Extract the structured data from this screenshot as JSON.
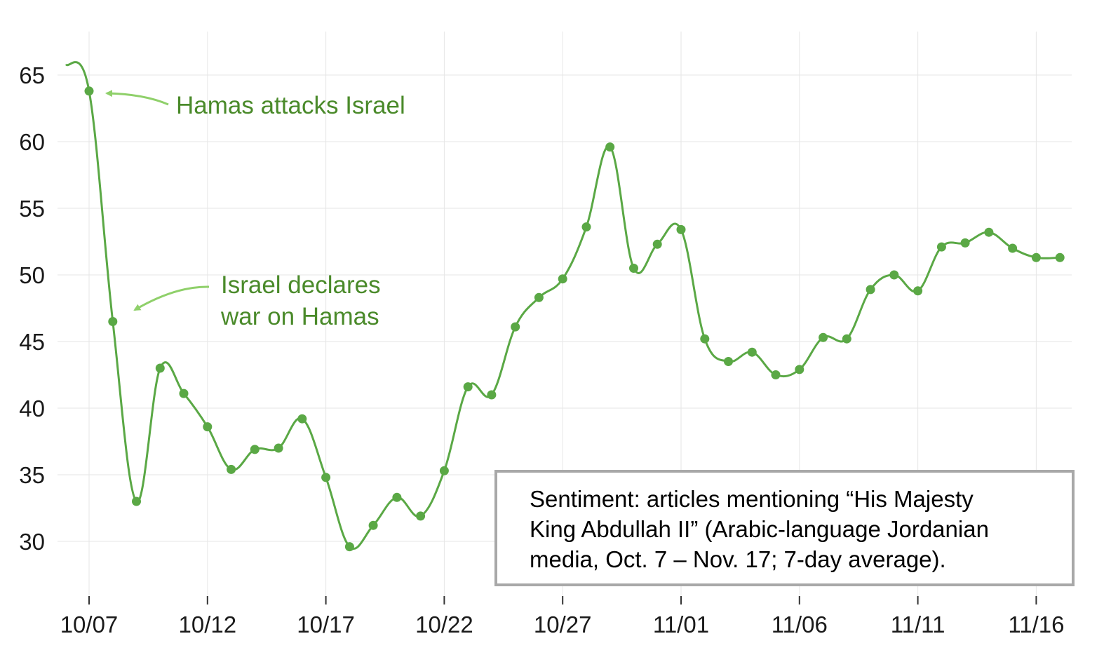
{
  "colors": {
    "line": "#5aa845",
    "point": "#5aa845",
    "annotation_text": "#4a8a2a",
    "annotation_arrow": "#8fd06a",
    "grid": "#e6e6e6",
    "legend_border": "#a8a8a8"
  },
  "annotations": {
    "hamas_attack": "Hamas attacks Israel",
    "war_declared_line1": "Israel declares",
    "war_declared_line2": "war on Hamas"
  },
  "legend": {
    "line1": "Sentiment: articles mentioning “His Majesty",
    "line2": "King Abdullah II” (Arabic-language Jordanian",
    "line3": "media, Oct. 7 – Nov. 17; 7-day average)."
  },
  "chart_data": {
    "type": "line",
    "title": "",
    "xlabel": "",
    "ylabel": "",
    "ylim": [
      25.5,
      68.5
    ],
    "yticks": [
      30,
      35,
      40,
      45,
      50,
      55,
      60,
      65
    ],
    "xtick_labels": [
      "10/07",
      "10/12",
      "10/17",
      "10/22",
      "10/27",
      "11/01",
      "11/06",
      "11/11",
      "11/16"
    ],
    "grid": true,
    "legend_placement": "bottom-right",
    "leading_segment_start": {
      "x": "10/06",
      "y": 65.8
    },
    "x": [
      "10/07",
      "10/08",
      "10/09",
      "10/10",
      "10/11",
      "10/12",
      "10/13",
      "10/14",
      "10/15",
      "10/16",
      "10/17",
      "10/18",
      "10/19",
      "10/20",
      "10/21",
      "10/22",
      "10/23",
      "10/24",
      "10/25",
      "10/26",
      "10/27",
      "10/28",
      "10/29",
      "10/30",
      "10/31",
      "11/01",
      "11/02",
      "11/03",
      "11/04",
      "11/05",
      "11/06",
      "11/07",
      "11/08",
      "11/09",
      "11/10",
      "11/11",
      "11/12",
      "11/13",
      "11/14",
      "11/15",
      "11/16",
      "11/17"
    ],
    "series": [
      {
        "values": [
          63.8,
          46.5,
          33.0,
          43.0,
          41.1,
          38.6,
          35.4,
          36.9,
          37.0,
          39.2,
          34.8,
          29.6,
          31.2,
          33.3,
          31.9,
          35.3,
          41.6,
          41.0,
          46.1,
          48.3,
          49.7,
          53.6,
          59.6,
          50.5,
          52.3,
          53.4,
          45.2,
          43.5,
          44.2,
          42.5,
          42.9,
          45.3,
          45.2,
          48.9,
          50.0,
          48.8,
          52.1,
          52.4,
          53.2,
          52.0,
          51.3,
          51.3
        ]
      }
    ]
  }
}
